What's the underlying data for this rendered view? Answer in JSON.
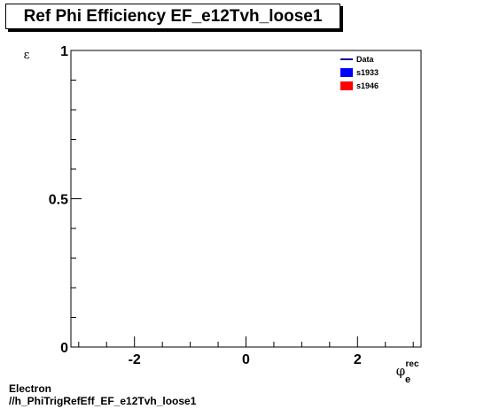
{
  "footer": {
    "line1": "Electron",
    "line2": "//h_PhiTrigRefEff_EF_e12Tvh_loose1"
  },
  "chart_data": {
    "type": "line",
    "title": "Ref Phi Efficiency EF_e12Tvh_loose1",
    "ylabel": "ε",
    "xlabel": "φ",
    "xlabel_sup": "rec",
    "xlabel_sub": "e",
    "xlim": [
      -3.14,
      3.14
    ],
    "ylim": [
      0,
      1
    ],
    "x_major_ticks": [
      -2,
      0,
      2
    ],
    "x_tick_labels": [
      "-2",
      "0",
      "2"
    ],
    "y_major_ticks": [
      0,
      0.5,
      1
    ],
    "y_tick_labels": [
      "0",
      "0.5",
      "1"
    ],
    "grid": false,
    "legend_position": "top-right",
    "series": [
      {
        "name": "Data",
        "legend_style": "line",
        "color": "#000099",
        "values": []
      },
      {
        "name": "s1933",
        "legend_style": "box",
        "color": "#0000ff",
        "values": []
      },
      {
        "name": "s1946",
        "legend_style": "box",
        "color": "#ff0000",
        "values": []
      }
    ]
  }
}
